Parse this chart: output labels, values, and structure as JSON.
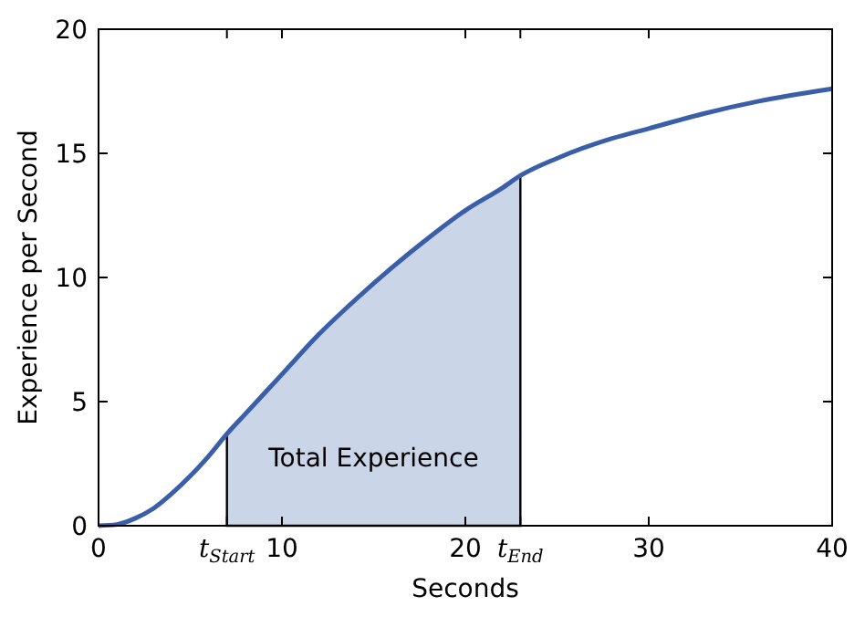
{
  "chart_data": {
    "type": "line",
    "xlabel": "Seconds",
    "ylabel": "Experience per Second",
    "xlim": [
      0,
      40
    ],
    "ylim": [
      0,
      20
    ],
    "xticks": [
      0,
      {
        "value": 7,
        "label": "t$_{Start}$"
      },
      10,
      20,
      {
        "value": 23,
        "label": "t$_{End}$"
      },
      30,
      40
    ],
    "yticks": [
      0,
      5,
      10,
      15,
      20
    ],
    "grid": false,
    "series": [
      {
        "type": "area",
        "color": "#cbd5e8",
        "x": [
          7,
          8,
          10,
          12,
          14,
          16,
          18,
          20,
          22,
          23
        ],
        "values": [
          3.7,
          4.5,
          6.1,
          7.7,
          9.1,
          10.4,
          11.6,
          12.7,
          13.6,
          14.1
        ]
      },
      {
        "color": "#3a5ea8",
        "x": [
          0,
          1,
          2,
          3,
          4,
          5,
          6,
          7,
          8,
          10,
          12,
          14,
          16,
          18,
          20,
          22,
          23,
          25,
          28,
          30,
          33,
          36,
          40
        ],
        "values": [
          0,
          0.05,
          0.3,
          0.7,
          1.3,
          2.0,
          2.8,
          3.7,
          4.5,
          6.1,
          7.7,
          9.1,
          10.4,
          11.6,
          12.7,
          13.6,
          14.1,
          14.8,
          15.6,
          16.0,
          16.6,
          17.1,
          17.6
        ]
      }
    ],
    "annotations": [
      "Total Experience"
    ]
  }
}
